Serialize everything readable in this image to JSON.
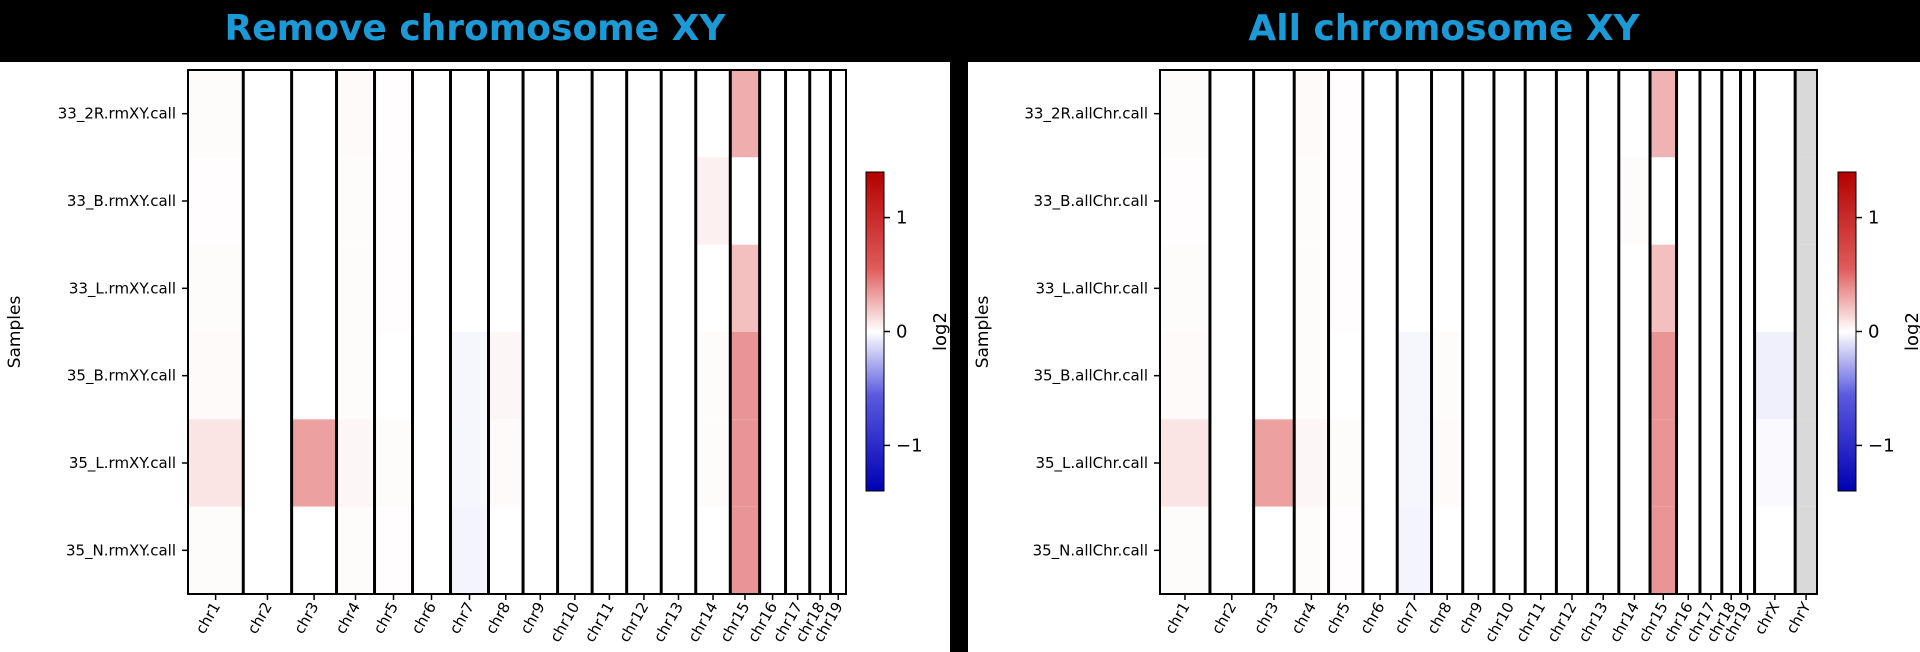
{
  "panels": [
    {
      "title": "Remove chromosome XY",
      "ylabel": "Samples",
      "colorbar_label": "log2"
    },
    {
      "title": "All chromosome XY",
      "ylabel": "Samples",
      "colorbar_label": "log2"
    }
  ],
  "chart_data": [
    {
      "type": "heatmap",
      "title": "Remove chromosome XY",
      "ylabel": "Samples",
      "xlabel": "",
      "rows": [
        "33_2R.rmXY.call",
        "33_B.rmXY.call",
        "33_L.rmXY.call",
        "35_B.rmXY.call",
        "35_L.rmXY.call",
        "35_N.rmXY.call"
      ],
      "columns": [
        "chr1",
        "chr2",
        "chr3",
        "chr4",
        "chr5",
        "chr6",
        "chr7",
        "chr8",
        "chr9",
        "chr10",
        "chr11",
        "chr12",
        "chr13",
        "chr14",
        "chr15",
        "chr16",
        "chr17",
        "chr18",
        "chr19"
      ],
      "column_weights": [
        1.6,
        1.4,
        1.3,
        1.1,
        1.1,
        1.1,
        1.1,
        1.0,
        1.0,
        1.0,
        1.0,
        1.0,
        1.0,
        1.0,
        0.85,
        0.75,
        0.7,
        0.6,
        0.45
      ],
      "values": [
        [
          0.02,
          0.0,
          0.0,
          0.03,
          0.01,
          0.0,
          0.0,
          0.0,
          0.0,
          0.0,
          0.0,
          0.0,
          0.0,
          0.0,
          0.45,
          0.0,
          0.0,
          0.0,
          0.0
        ],
        [
          0.01,
          0.0,
          0.0,
          0.02,
          0.01,
          0.0,
          0.0,
          0.0,
          0.0,
          0.0,
          0.0,
          0.0,
          0.0,
          0.08,
          0.0,
          0.0,
          0.0,
          0.0,
          0.0
        ],
        [
          0.02,
          0.0,
          0.0,
          0.02,
          0.01,
          0.0,
          0.0,
          0.0,
          0.0,
          0.0,
          0.0,
          0.0,
          0.0,
          0.0,
          0.35,
          0.0,
          0.0,
          0.0,
          0.0
        ],
        [
          0.03,
          0.0,
          0.0,
          0.02,
          0.0,
          0.0,
          -0.05,
          0.05,
          0.0,
          0.0,
          0.0,
          0.0,
          0.0,
          0.02,
          0.58,
          0.0,
          0.0,
          0.0,
          0.0
        ],
        [
          0.15,
          0.0,
          0.52,
          0.05,
          0.02,
          0.0,
          -0.05,
          0.03,
          0.0,
          0.0,
          0.0,
          0.0,
          0.0,
          0.02,
          0.58,
          0.0,
          0.0,
          0.0,
          0.0
        ],
        [
          0.02,
          0.0,
          0.0,
          0.02,
          0.01,
          0.0,
          -0.06,
          0.0,
          0.0,
          0.0,
          0.0,
          0.0,
          0.0,
          0.0,
          0.58,
          0.0,
          0.0,
          0.0,
          0.0
        ]
      ],
      "colorbar": {
        "label": "log2",
        "ticks": [
          1,
          0,
          -1
        ],
        "range": [
          -1.4,
          1.4
        ],
        "colormap": "bwr"
      }
    },
    {
      "type": "heatmap",
      "title": "All chromosome XY",
      "ylabel": "Samples",
      "xlabel": "",
      "rows": [
        "33_2R.allChr.call",
        "33_B.allChr.call",
        "33_L.allChr.call",
        "35_B.allChr.call",
        "35_L.allChr.call",
        "35_N.allChr.call"
      ],
      "columns": [
        "chr1",
        "chr2",
        "chr3",
        "chr4",
        "chr5",
        "chr6",
        "chr7",
        "chr8",
        "chr9",
        "chr10",
        "chr11",
        "chr12",
        "chr13",
        "chr14",
        "chr15",
        "chr16",
        "chr17",
        "chr18",
        "chr19",
        "chrX",
        "chrY"
      ],
      "column_weights": [
        1.6,
        1.4,
        1.3,
        1.1,
        1.1,
        1.1,
        1.1,
        1.0,
        1.0,
        1.0,
        1.0,
        1.0,
        1.0,
        1.0,
        0.85,
        0.75,
        0.7,
        0.6,
        0.45,
        1.3,
        0.7
      ],
      "values": [
        [
          0.02,
          0.0,
          0.0,
          0.03,
          0.01,
          0.0,
          0.0,
          0.0,
          0.0,
          0.0,
          0.0,
          0.0,
          0.0,
          0.0,
          0.42,
          0.0,
          0.0,
          0.0,
          0.0,
          0.0,
          null
        ],
        [
          0.01,
          0.0,
          0.0,
          0.02,
          0.01,
          0.0,
          0.0,
          0.0,
          0.0,
          0.0,
          0.0,
          0.0,
          0.0,
          0.02,
          0.0,
          0.0,
          0.0,
          0.0,
          0.0,
          0.0,
          null
        ],
        [
          0.02,
          0.0,
          0.0,
          0.02,
          0.01,
          0.0,
          0.0,
          0.0,
          0.0,
          0.0,
          0.0,
          0.0,
          0.0,
          0.0,
          0.35,
          0.0,
          0.0,
          0.0,
          0.0,
          0.0,
          null
        ],
        [
          0.03,
          0.0,
          0.0,
          0.02,
          0.0,
          0.0,
          -0.05,
          0.02,
          0.0,
          0.0,
          0.0,
          0.0,
          0.0,
          0.0,
          0.58,
          0.0,
          0.0,
          0.0,
          0.0,
          -0.08,
          null
        ],
        [
          0.15,
          0.0,
          0.52,
          0.05,
          0.02,
          0.0,
          -0.05,
          0.03,
          0.0,
          0.0,
          0.0,
          0.0,
          0.0,
          0.0,
          0.58,
          0.0,
          0.0,
          0.0,
          0.0,
          -0.03,
          null
        ],
        [
          0.02,
          0.0,
          0.0,
          0.02,
          0.01,
          0.0,
          -0.06,
          0.0,
          0.0,
          0.0,
          0.0,
          0.0,
          0.0,
          0.0,
          0.58,
          0.0,
          0.0,
          0.0,
          0.0,
          0.0,
          null
        ]
      ],
      "colorbar": {
        "label": "log2",
        "ticks": [
          1,
          0,
          -1
        ],
        "range": [
          -1.4,
          1.4
        ],
        "colormap": "bwr"
      }
    }
  ],
  "colors": {
    "title_text": "#1a9bd7",
    "title_bar": "#000000",
    "missing_value": "#d9d9d9"
  }
}
